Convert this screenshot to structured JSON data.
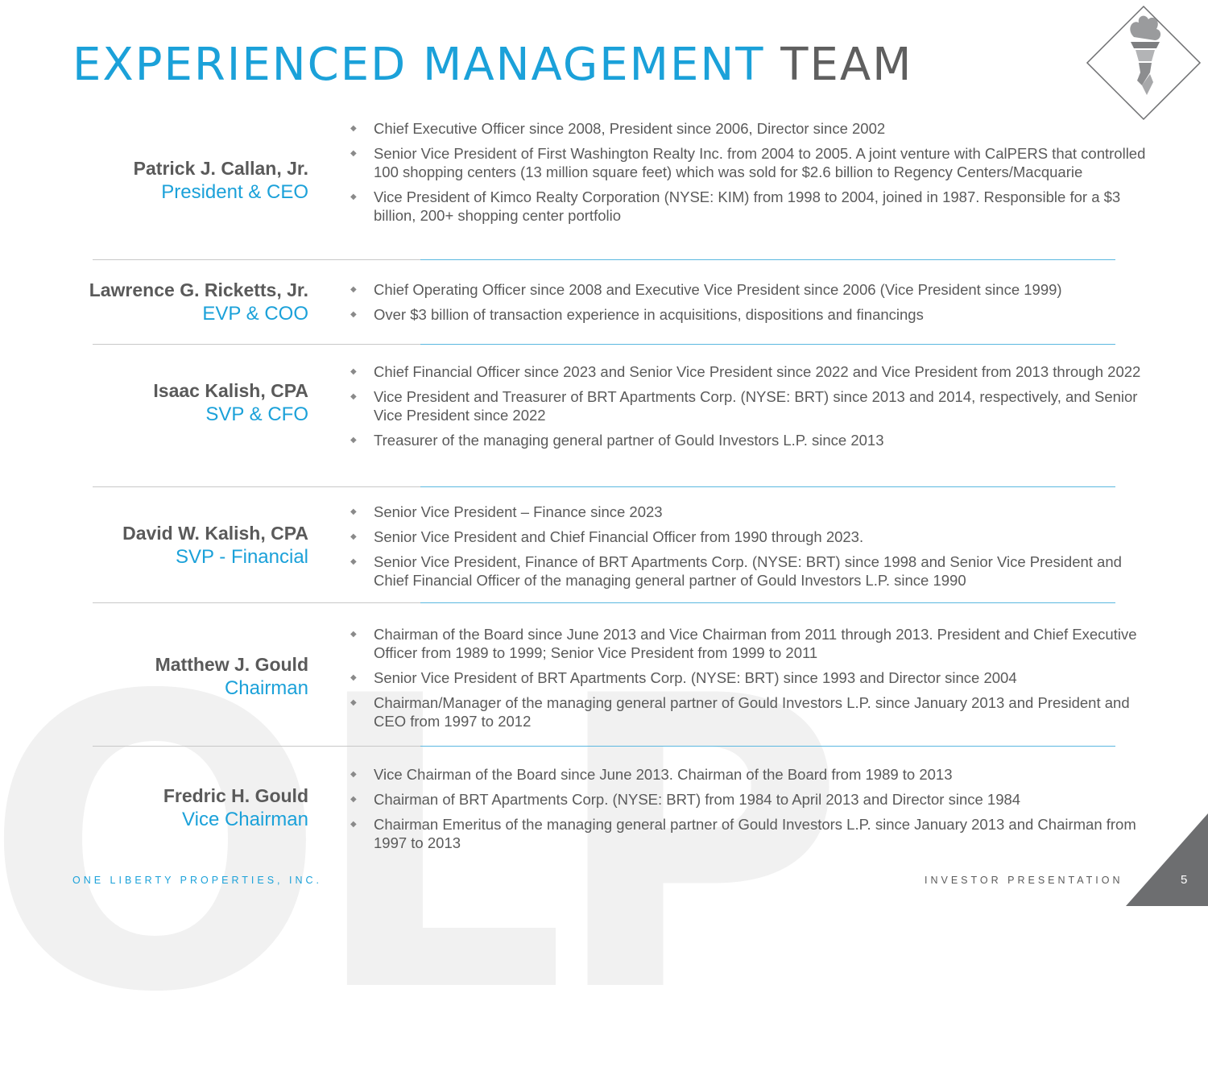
{
  "watermark": "OLP",
  "title": {
    "highlight": "EXPERIENCED MANAGEMENT",
    "rest": "TEAM"
  },
  "logo": {
    "icon": "statue-of-liberty-torch-icon"
  },
  "executives": [
    {
      "name": "Patrick J. Callan, Jr.",
      "role": "President & CEO",
      "bullets": [
        "Chief Executive Officer since 2008, President since 2006, Director since 2002",
        "Senior Vice President of First Washington Realty Inc. from 2004 to 2005. A joint venture with CalPERS that controlled 100 shopping centers (13 million square feet) which was sold for $2.6 billion to Regency Centers/Macquarie",
        "Vice President of Kimco Realty Corporation (NYSE: KIM) from 1998 to 2004, joined in 1987.  Responsible for a $3 billion, 200+ shopping center portfolio"
      ]
    },
    {
      "name": "Lawrence G. Ricketts, Jr.",
      "role": "EVP & COO",
      "bullets": [
        "Chief Operating Officer since 2008 and Executive Vice President since 2006 (Vice President since 1999)",
        "Over $3 billion of transaction experience in acquisitions, dispositions and financings"
      ]
    },
    {
      "name": "Isaac Kalish, CPA",
      "role": "SVP & CFO",
      "bullets": [
        "Chief Financial Officer since 2023 and Senior Vice President since 2022 and Vice President from 2013 through 2022",
        "Vice President and Treasurer of BRT Apartments Corp. (NYSE: BRT) since 2013 and 2014, respectively, and Senior Vice President since 2022",
        "Treasurer  of the managing general partner of Gould Investors L.P. since 2013"
      ]
    },
    {
      "name": "David W. Kalish, CPA",
      "role": "SVP - Financial",
      "bullets": [
        "Senior Vice President – Finance since 2023",
        "Senior Vice President and Chief Financial Officer from 1990 through 2023.",
        "Senior Vice President, Finance of BRT Apartments Corp. (NYSE: BRT) since 1998 and Senior Vice President and Chief Financial Officer of the managing general partner of Gould Investors L.P. since 1990"
      ]
    },
    {
      "name": "Matthew J. Gould",
      "role": "Chairman",
      "bullets": [
        "Chairman of the Board since June 2013 and Vice Chairman from 2011 through 2013. President and Chief Executive Officer from 1989 to 1999; Senior Vice President from 1999 to 2011",
        "Senior Vice President of BRT Apartments Corp. (NYSE: BRT)  since 1993 and Director since 2004",
        "Chairman/Manager of the managing general partner of Gould Investors L.P. since January 2013 and President and CEO from 1997 to 2012"
      ]
    },
    {
      "name": "Fredric H. Gould",
      "role": "Vice Chairman",
      "bullets": [
        "Vice Chairman of the Board since June 2013.  Chairman of the Board from 1989 to 2013",
        "Chairman of BRT Apartments Corp. (NYSE: BRT) from 1984 to April 2013 and Director since 1984",
        "Chairman Emeritus of the managing general partner of Gould Investors L.P. since January 2013 and Chairman from 1997 to 2013"
      ]
    }
  ],
  "footer": {
    "company": "ONE LIBERTY PROPERTIES, INC.",
    "document": "INVESTOR PRESENTATION",
    "page": "5"
  }
}
